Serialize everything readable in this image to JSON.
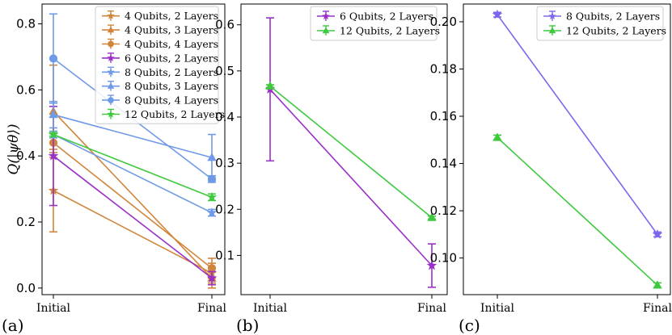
{
  "chart_data": [
    {
      "type": "line",
      "panel_label": "(a)",
      "ylabel": "Q(|ψθ⟩)",
      "categories": [
        "Initial",
        "Final"
      ],
      "ylim": [
        -0.02,
        0.86
      ],
      "yticks": [
        "0.0",
        "0.2",
        "0.4",
        "0.6",
        "0.8"
      ],
      "legend_position": "top-right",
      "series": [
        {
          "name": "4 Qubits, 2 Layers",
          "values": [
            0.295,
            0.045
          ],
          "err": [
            0.125,
            0.03
          ],
          "color": "#d1853a",
          "marker": "star"
        },
        {
          "name": "4 Qubits, 3 Layers",
          "values": [
            0.535,
            0.03
          ],
          "err": [
            0.14,
            0.03
          ],
          "color": "#d1853a",
          "marker": "triangle"
        },
        {
          "name": "4 Qubits, 4 Layers",
          "values": [
            0.44,
            0.06
          ],
          "err": [
            0.03,
            0.03
          ],
          "color": "#d1853a",
          "marker": "circle"
        },
        {
          "name": "6 Qubits, 2 Layers",
          "values": [
            0.4,
            0.03
          ],
          "err": [
            0.15,
            0.02
          ],
          "color": "#9b30c8",
          "marker": "star"
        },
        {
          "name": "8 Qubits, 2 Layers",
          "values": [
            0.465,
            0.228
          ],
          "err": [
            0.01,
            0.01
          ],
          "color": "#6f9ae8",
          "marker": "star"
        },
        {
          "name": "8 Qubits, 3 Layers",
          "values": [
            0.525,
            0.395
          ],
          "err": [
            0.04,
            0.07
          ],
          "color": "#6f9ae8",
          "marker": "triangle"
        },
        {
          "name": "8 Qubits, 4 Layers",
          "values": [
            0.695,
            0.33
          ],
          "err": [
            0.135,
            0.01
          ],
          "color": "#6f9ae8",
          "marker": "circle"
        },
        {
          "name": "12 Qubits, 2 Layers",
          "values": [
            0.465,
            0.275
          ],
          "err": [
            0.005,
            0.01
          ],
          "color": "#3ec93e",
          "marker": "star"
        }
      ]
    },
    {
      "type": "line",
      "panel_label": "(b)",
      "categories": [
        "Initial",
        "Final"
      ],
      "ylim": [
        0.015,
        0.645
      ],
      "yticks": [
        "0.1",
        "0.2",
        "0.3",
        "0.4",
        "0.5",
        "0.6"
      ],
      "legend_position": "top-right",
      "series": [
        {
          "name": "6 Qubits, 2 Layers",
          "values": [
            0.46,
            0.078
          ],
          "err": [
            0.155,
            0.047
          ],
          "color": "#9b30c8",
          "marker": "star"
        },
        {
          "name": "12 Qubits, 2 Layers",
          "values": [
            0.467,
            0.182
          ],
          "err": [
            0.003,
            0.003
          ],
          "color": "#3ec93e",
          "marker": "triangle"
        }
      ]
    },
    {
      "type": "line",
      "panel_label": "(c)",
      "categories": [
        "Initial",
        "Final"
      ],
      "ylim": [
        0.0845,
        0.2075
      ],
      "yticks": [
        "0.10",
        "0.12",
        "0.14",
        "0.16",
        "0.18",
        "0.20"
      ],
      "legend_position": "top-right",
      "series": [
        {
          "name": "8 Qubits, 2 Layers",
          "values": [
            0.203,
            0.11
          ],
          "err": [
            0.001,
            0.001
          ],
          "color": "#7b68ee",
          "marker": "star"
        },
        {
          "name": "12 Qubits, 2 Layers",
          "values": [
            0.151,
            0.0885
          ],
          "err": [
            0.001,
            0.001
          ],
          "color": "#3ec93e",
          "marker": "triangle"
        }
      ]
    }
  ]
}
